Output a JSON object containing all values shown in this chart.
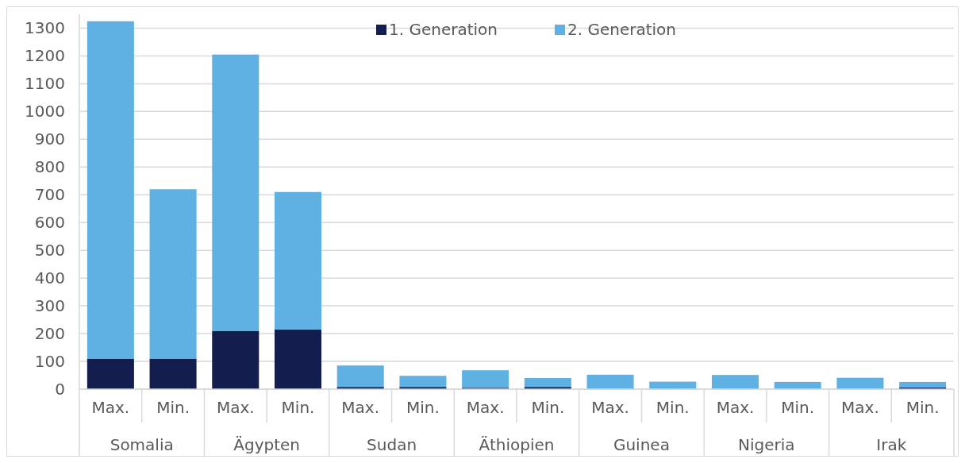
{
  "chart_data": {
    "type": "bar",
    "stacked": true,
    "categories": [
      "Max.",
      "Min.",
      "Max.",
      "Min.",
      "Max.",
      "Min.",
      "Max.",
      "Min.",
      "Max.",
      "Min.",
      "Max.",
      "Min.",
      "Max.",
      "Min."
    ],
    "series": [
      {
        "name": "1. Generation",
        "color": "#131e4e",
        "values": [
          110,
          110,
          210,
          215,
          8,
          8,
          5,
          8,
          null,
          null,
          0,
          0,
          null,
          6
        ]
      },
      {
        "name": "2. Generation",
        "color": "#5fb1e3",
        "values": [
          1215,
          610,
          995,
          495,
          77,
          40,
          63,
          32,
          52,
          27,
          51,
          26,
          41,
          20
        ]
      }
    ],
    "annotations": [
      "Somalia",
      "Ägypten",
      "Sudan",
      "Äthiopien",
      "Guinea",
      "Nigeria",
      "Irak"
    ],
    "ylim": [
      0,
      1350
    ],
    "yticks": [
      0,
      100,
      200,
      300,
      400,
      500,
      600,
      700,
      800,
      900,
      1000,
      1100,
      1200,
      1300
    ],
    "grid": "y",
    "legend": "top"
  }
}
